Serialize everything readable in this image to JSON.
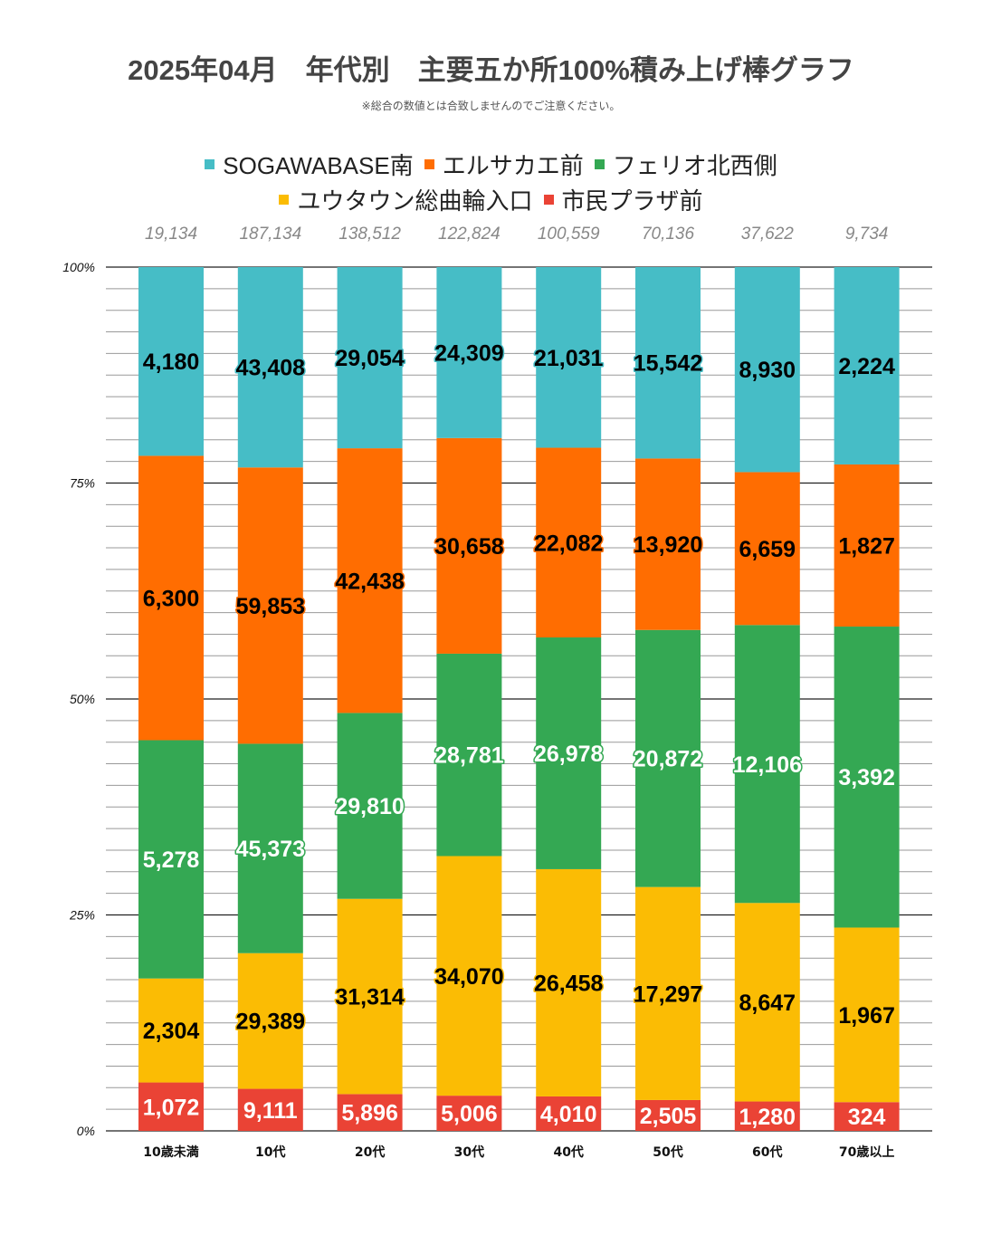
{
  "header": {
    "title": "2025年04月　年代別　主要五か所100%積み上げ棒グラフ",
    "subtitle": "※総合の数値とは合致しませんのでご注意ください。"
  },
  "chart_data": {
    "type": "bar",
    "stacked": "percent",
    "title": "2025年04月　年代別　主要五か所100%積み上げ棒グラフ",
    "subtitle": "※総合の数値とは合致しませんのでご注意ください。",
    "xlabel": "",
    "ylabel": "",
    "ylim": [
      0,
      100
    ],
    "yticks": [
      "0%",
      "25%",
      "50%",
      "75%",
      "100%"
    ],
    "minor_grid_step_percent": 2.5,
    "grid": true,
    "legend_position": "top-center",
    "categories": [
      "10歳未満",
      "10代",
      "20代",
      "30代",
      "40代",
      "50代",
      "60代",
      "70歳以上"
    ],
    "totals": [
      "19,134",
      "187,134",
      "138,512",
      "122,824",
      "100,559",
      "70,136",
      "37,622",
      "9,734"
    ],
    "series": [
      {
        "name": "市民プラザ前",
        "color": "#ea4335",
        "label_color": "#ffffff",
        "label_outline": "#ea4335",
        "values": [
          1072,
          9111,
          5896,
          5006,
          4010,
          2505,
          1280,
          324
        ],
        "labels": [
          "1,072",
          "9,111",
          "5,896",
          "5,006",
          "4,010",
          "2,505",
          "1,280",
          "324"
        ]
      },
      {
        "name": "ユウタウン総曲輪入口",
        "color": "#fbbc04",
        "label_color": "#000000",
        "label_outline": "#fbbc04",
        "values": [
          2304,
          29389,
          31314,
          34070,
          26458,
          17297,
          8647,
          1967
        ],
        "labels": [
          "2,304",
          "29,389",
          "31,314",
          "34,070",
          "26,458",
          "17,297",
          "8,647",
          "1,967"
        ]
      },
      {
        "name": "フェリオ北西側",
        "color": "#34a853",
        "label_color": "#ffffff",
        "label_outline": "#34a853",
        "values": [
          5278,
          45373,
          29810,
          28781,
          26978,
          20872,
          12106,
          3392
        ],
        "labels": [
          "5,278",
          "45,373",
          "29,810",
          "28,781",
          "26,978",
          "20,872",
          "12,106",
          "3,392"
        ]
      },
      {
        "name": "エルサカエ前",
        "color": "#ff6d01",
        "label_color": "#000000",
        "label_outline": "#ff6d01",
        "values": [
          6300,
          59853,
          42438,
          30658,
          22082,
          13920,
          6659,
          1827
        ],
        "labels": [
          "6,300",
          "59,853",
          "42,438",
          "30,658",
          "22,082",
          "13,920",
          "6,659",
          "1,827"
        ]
      },
      {
        "name": "SOGAWABASE南",
        "color": "#46bdc6",
        "label_color": "#000000",
        "label_outline": "#46bdc6",
        "values": [
          4180,
          43408,
          29054,
          24309,
          21031,
          15542,
          8930,
          2224
        ],
        "labels": [
          "4,180",
          "43,408",
          "29,054",
          "24,309",
          "21,031",
          "15,542",
          "8,930",
          "2,224"
        ]
      }
    ],
    "legend_order_row1": [
      4,
      3,
      2
    ],
    "legend_order_row2": [
      1,
      0
    ]
  }
}
